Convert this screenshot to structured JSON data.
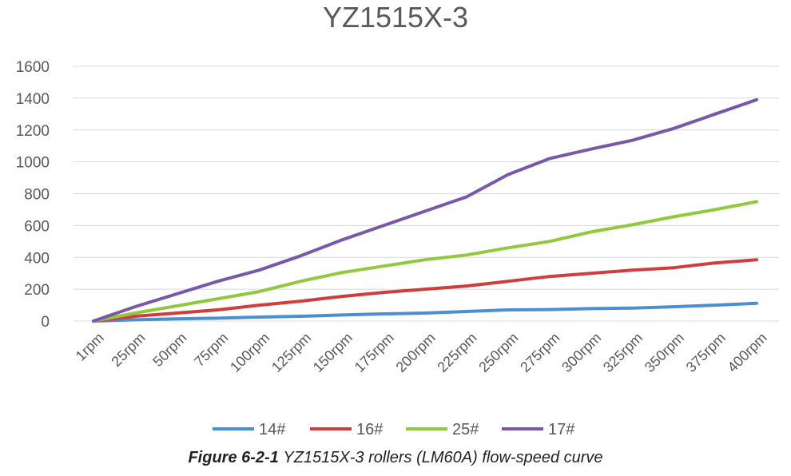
{
  "chart_data": {
    "type": "line",
    "title": "YZ1515X-3",
    "categories": [
      "1rpm",
      "25rpm",
      "50rpm",
      "75rpm",
      "100rpm",
      "125rpm",
      "150rpm",
      "175rpm",
      "200rpm",
      "225rpm",
      "250rpm",
      "275rpm",
      "300rpm",
      "325rpm",
      "350rpm",
      "375rpm",
      "400rpm"
    ],
    "ylim": [
      0,
      1600
    ],
    "yticks": [
      0,
      200,
      400,
      600,
      800,
      1000,
      1200,
      1400,
      1600
    ],
    "grid": true,
    "legend_position": "bottom",
    "series": [
      {
        "name": "14#",
        "color": "#4a8fd1",
        "values": [
          0,
          8,
          14,
          18,
          25,
          30,
          38,
          45,
          50,
          60,
          70,
          72,
          78,
          82,
          90,
          100,
          112
        ]
      },
      {
        "name": "16#",
        "color": "#cf3d3d",
        "values": [
          0,
          30,
          50,
          70,
          100,
          125,
          155,
          180,
          200,
          220,
          250,
          280,
          300,
          320,
          335,
          365,
          385
        ]
      },
      {
        "name": "25#",
        "color": "#92c83e",
        "values": [
          0,
          50,
          95,
          140,
          185,
          250,
          305,
          345,
          385,
          415,
          460,
          500,
          560,
          605,
          655,
          700,
          750
        ]
      },
      {
        "name": "17#",
        "color": "#7a57a8",
        "values": [
          0,
          90,
          170,
          250,
          320,
          410,
          510,
          600,
          690,
          780,
          920,
          1020,
          1080,
          1135,
          1210,
          1300,
          1390
        ]
      }
    ]
  },
  "caption": {
    "label": "Figure 6-2-1",
    "text": "YZ1515X-3 rollers (LM60A) flow-speed curve"
  }
}
